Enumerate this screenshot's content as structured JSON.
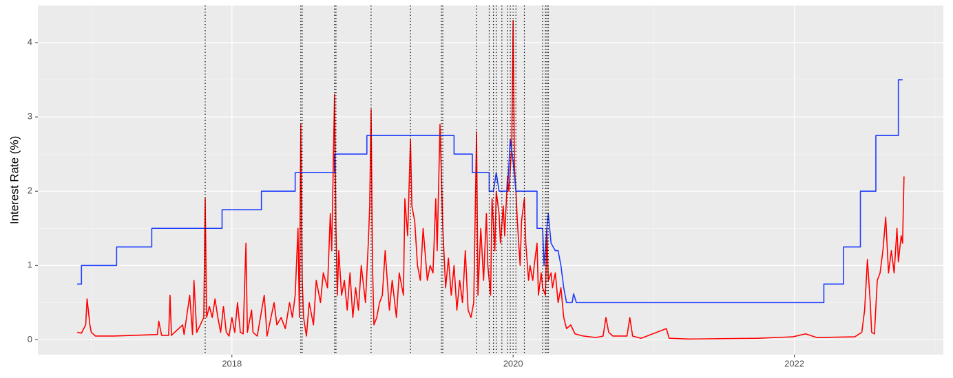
{
  "chart_data": {
    "type": "line",
    "ylabel": "Interest Rate (%)",
    "xlim": [
      2016.62,
      2023.06
    ],
    "ylim": [
      -0.2,
      4.5
    ],
    "xticks": [
      2018,
      2020,
      2022
    ],
    "yticks": [
      0,
      1,
      2,
      3,
      4
    ],
    "xminor": [
      2017,
      2019,
      2021,
      2023
    ],
    "yminor": [
      0.5,
      1.5,
      2.5,
      3.5
    ],
    "grid": true,
    "vlines": [
      2017.81,
      2018.49,
      2018.5,
      2018.73,
      2018.74,
      2018.99,
      2019.27,
      2019.49,
      2019.5,
      2019.74,
      2019.83,
      2019.86,
      2019.88,
      2019.92,
      2019.96,
      2019.98,
      2020.0,
      2020.02,
      2020.08,
      2020.21,
      2020.23,
      2020.24,
      2020.25
    ],
    "series": [
      {
        "color": "#1f3cff",
        "x": [
          2016.9,
          2016.93,
          2016.93,
          2017.18,
          2017.18,
          2017.43,
          2017.43,
          2017.93,
          2017.93,
          2018.21,
          2018.21,
          2018.45,
          2018.45,
          2018.73,
          2018.73,
          2018.96,
          2018.96,
          2019.58,
          2019.58,
          2019.71,
          2019.71,
          2019.83,
          2019.83,
          2019.86,
          2019.88,
          2019.9,
          2019.96,
          2019.98,
          2020.0,
          2020.02,
          2020.17,
          2020.17,
          2020.21,
          2020.22,
          2020.24,
          2020.25,
          2020.27,
          2020.3,
          2020.32,
          2020.34,
          2020.36,
          2020.38,
          2020.42,
          2020.43,
          2020.45,
          2022.21,
          2022.21,
          2022.35,
          2022.35,
          2022.47,
          2022.47,
          2022.58,
          2022.58,
          2022.74,
          2022.74,
          2022.77
        ],
        "values": [
          0.75,
          0.75,
          1.0,
          1.0,
          1.25,
          1.25,
          1.5,
          1.5,
          1.75,
          1.75,
          2.0,
          2.0,
          2.25,
          2.25,
          2.5,
          2.5,
          2.75,
          2.75,
          2.5,
          2.5,
          2.25,
          2.25,
          2.0,
          2.0,
          2.25,
          2.0,
          2.0,
          2.7,
          2.4,
          2.0,
          2.0,
          1.5,
          1.5,
          1.0,
          1.5,
          1.7,
          1.3,
          1.2,
          1.2,
          1.0,
          0.7,
          0.5,
          0.5,
          0.62,
          0.5,
          0.5,
          0.75,
          0.75,
          1.25,
          1.25,
          2.0,
          2.0,
          2.75,
          2.75,
          3.5,
          3.5
        ]
      },
      {
        "color": "#ff0000",
        "x": [
          2016.9,
          2016.93,
          2016.96,
          2016.97,
          2016.99,
          2017.0,
          2017.03,
          2017.16,
          2017.3,
          2017.47,
          2017.48,
          2017.5,
          2017.55,
          2017.56,
          2017.57,
          2017.65,
          2017.66,
          2017.7,
          2017.72,
          2017.73,
          2017.75,
          2017.8,
          2017.81,
          2017.82,
          2017.84,
          2017.86,
          2017.88,
          2017.9,
          2017.92,
          2017.94,
          2017.96,
          2017.98,
          2018.0,
          2018.02,
          2018.04,
          2018.06,
          2018.08,
          2018.1,
          2018.11,
          2018.14,
          2018.15,
          2018.18,
          2018.23,
          2018.25,
          2018.3,
          2018.32,
          2018.35,
          2018.38,
          2018.41,
          2018.43,
          2018.45,
          2018.47,
          2018.48,
          2018.49,
          2018.5,
          2018.51,
          2018.53,
          2018.55,
          2018.58,
          2018.6,
          2018.63,
          2018.65,
          2018.68,
          2018.7,
          2018.71,
          2018.73,
          2018.74,
          2018.75,
          2018.76,
          2018.78,
          2018.8,
          2018.82,
          2018.84,
          2018.86,
          2018.88,
          2018.9,
          2018.92,
          2018.95,
          2018.97,
          2018.98,
          2018.99,
          2019.0,
          2019.01,
          2019.03,
          2019.05,
          2019.07,
          2019.09,
          2019.12,
          2019.14,
          2019.17,
          2019.19,
          2019.22,
          2019.23,
          2019.25,
          2019.27,
          2019.28,
          2019.3,
          2019.32,
          2019.34,
          2019.36,
          2019.39,
          2019.41,
          2019.43,
          2019.45,
          2019.46,
          2019.48,
          2019.49,
          2019.5,
          2019.52,
          2019.54,
          2019.56,
          2019.58,
          2019.6,
          2019.62,
          2019.64,
          2019.66,
          2019.68,
          2019.7,
          2019.72,
          2019.74,
          2019.75,
          2019.77,
          2019.79,
          2019.81,
          2019.82,
          2019.84,
          2019.85,
          2019.87,
          2019.88,
          2019.9,
          2019.91,
          2019.93,
          2019.94,
          2019.96,
          2019.97,
          2019.99,
          2020.0,
          2020.01,
          2020.02,
          2020.03,
          2020.05,
          2020.06,
          2020.08,
          2020.09,
          2020.11,
          2020.12,
          2020.14,
          2020.15,
          2020.17,
          2020.18,
          2020.2,
          2020.21,
          2020.23,
          2020.24,
          2020.25,
          2020.27,
          2020.28,
          2020.3,
          2020.32,
          2020.34,
          2020.36,
          2020.38,
          2020.41,
          2020.44,
          2020.5,
          2020.59,
          2020.64,
          2020.66,
          2020.68,
          2020.71,
          2020.81,
          2020.83,
          2020.85,
          2020.91,
          2021.09,
          2021.11,
          2021.25,
          2021.74,
          2021.99,
          2022.08,
          2022.16,
          2022.43,
          2022.48,
          2022.5,
          2022.52,
          2022.54,
          2022.55,
          2022.57,
          2022.59,
          2022.61,
          2022.63,
          2022.65,
          2022.67,
          2022.69,
          2022.71,
          2022.73,
          2022.74,
          2022.76,
          2022.77,
          2022.78
        ],
        "values": [
          0.1,
          0.09,
          0.2,
          0.55,
          0.2,
          0.1,
          0.05,
          0.05,
          0.06,
          0.07,
          0.25,
          0.06,
          0.06,
          0.6,
          0.06,
          0.2,
          0.07,
          0.6,
          0.07,
          0.8,
          0.1,
          0.3,
          1.9,
          0.3,
          0.45,
          0.3,
          0.55,
          0.3,
          0.1,
          0.45,
          0.1,
          0.05,
          0.3,
          0.1,
          0.5,
          0.1,
          0.08,
          1.3,
          0.1,
          0.4,
          0.1,
          0.05,
          0.6,
          0.05,
          0.5,
          0.2,
          0.3,
          0.15,
          0.5,
          0.3,
          0.6,
          1.5,
          0.3,
          2.9,
          0.8,
          0.3,
          0.05,
          0.5,
          0.2,
          0.8,
          0.5,
          0.9,
          0.7,
          1.7,
          1.2,
          3.3,
          1.5,
          0.6,
          1.2,
          0.6,
          0.8,
          0.4,
          0.9,
          0.3,
          0.7,
          0.4,
          1.0,
          0.5,
          1.3,
          1.8,
          3.1,
          1.0,
          0.2,
          0.3,
          0.5,
          0.6,
          1.2,
          0.4,
          0.8,
          0.3,
          0.9,
          0.6,
          1.9,
          1.4,
          2.7,
          1.8,
          1.6,
          1.0,
          0.8,
          1.5,
          0.8,
          1.0,
          0.9,
          1.9,
          1.2,
          2.9,
          2.2,
          1.5,
          0.7,
          1.1,
          0.6,
          1.0,
          0.4,
          0.8,
          0.5,
          1.2,
          0.4,
          0.3,
          0.5,
          2.8,
          0.6,
          1.5,
          0.8,
          1.7,
          1.0,
          0.6,
          1.9,
          1.2,
          2.0,
          1.7,
          1.3,
          1.8,
          1.4,
          2.2,
          2.0,
          2.6,
          4.3,
          2.3,
          2.0,
          1.6,
          1.0,
          1.6,
          1.9,
          1.3,
          0.8,
          1.0,
          0.8,
          1.0,
          1.3,
          0.6,
          0.9,
          0.7,
          0.6,
          1.5,
          0.8,
          0.9,
          0.7,
          0.9,
          0.5,
          0.7,
          0.3,
          0.15,
          0.2,
          0.08,
          0.05,
          0.03,
          0.05,
          0.3,
          0.1,
          0.05,
          0.05,
          0.3,
          0.05,
          0.02,
          0.15,
          0.02,
          0.01,
          0.02,
          0.04,
          0.08,
          0.03,
          0.04,
          0.1,
          0.4,
          1.08,
          0.5,
          0.1,
          0.08,
          0.8,
          0.9,
          1.2,
          1.65,
          0.9,
          1.2,
          0.9,
          1.5,
          1.05,
          1.4,
          1.3,
          2.2
        ]
      }
    ]
  }
}
